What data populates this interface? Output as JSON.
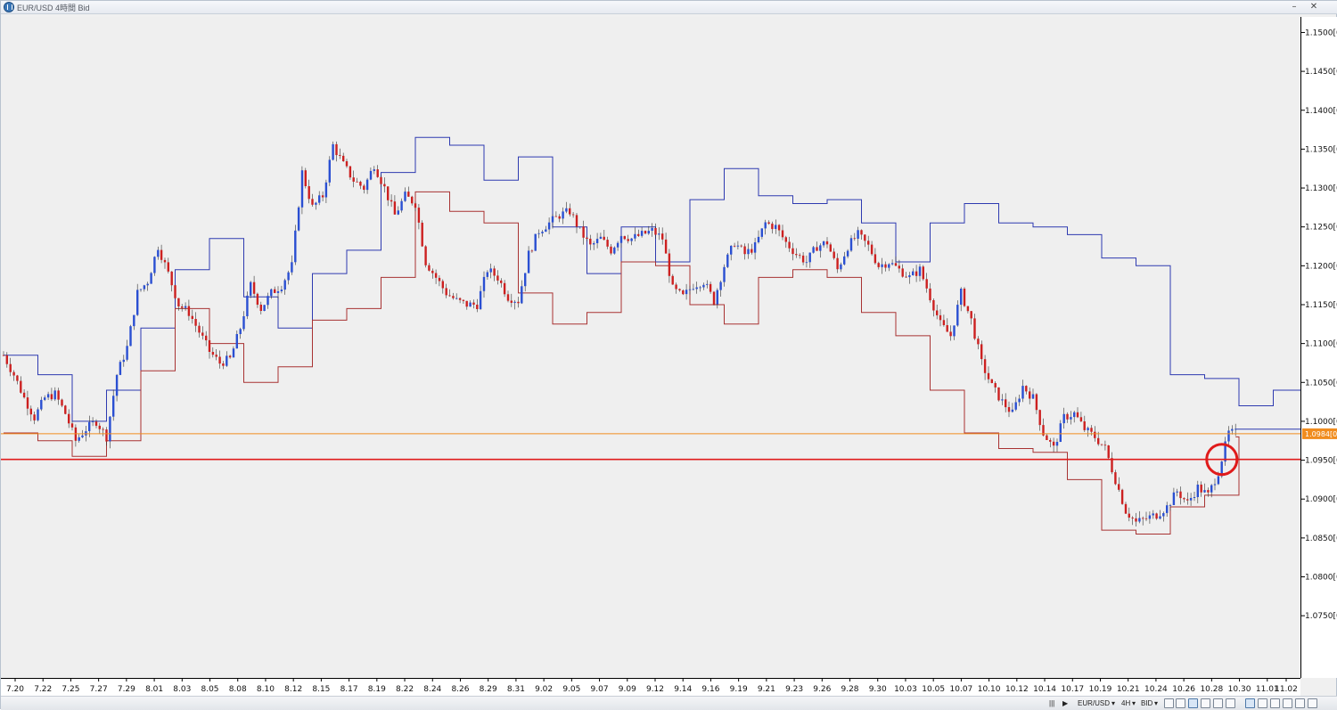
{
  "window": {
    "title": "EUR/USD 4時間 Bid",
    "minimize": "–",
    "close": "✕"
  },
  "colors": {
    "up_candle": "#2a4fd2",
    "down_candle": "#cc2020",
    "channel_high": "#2e3ab0",
    "channel_low": "#a83232",
    "support_line": "#e01b1b",
    "current_price_line": "#f08c1e",
    "marker_circle": "#e01b1b"
  },
  "chart_data": {
    "type": "candlestick",
    "symbol": "EUR/USD",
    "timeframe": "4H",
    "price_type": "Bid",
    "y_range": [
      1.067,
      1.152
    ],
    "y_ticks": [
      "1.1500[0",
      "1.1450[0",
      "1.1400[0",
      "1.1350[0",
      "1.1300[0",
      "1.1250[0",
      "1.1200[0",
      "1.1150[0",
      "1.1100[0",
      "1.1050[0",
      "1.1000[0",
      "1.0950[0",
      "1.0900[0",
      "1.0850[0",
      "1.0800[0",
      "1.0750[0"
    ],
    "x_ticks": [
      "7.20",
      "7.22",
      "7.25",
      "7.27",
      "7.29",
      "8.01",
      "8.03",
      "8.05",
      "8.08",
      "8.10",
      "8.12",
      "8.15",
      "8.17",
      "8.19",
      "8.22",
      "8.24",
      "8.26",
      "8.29",
      "8.31",
      "9.02",
      "9.05",
      "9.07",
      "9.09",
      "9.12",
      "9.14",
      "9.16",
      "9.19",
      "9.21",
      "9.23",
      "9.26",
      "9.28",
      "9.30",
      "10.03",
      "10.05",
      "10.07",
      "10.10",
      "10.12",
      "10.14",
      "10.17",
      "10.19",
      "10.21",
      "10.24",
      "10.26",
      "10.28",
      "10.30",
      "11.01",
      "11.02"
    ],
    "close_path": [
      [
        0,
        1.1085
      ],
      [
        3,
        1.106
      ],
      [
        6,
        1.103
      ],
      [
        9,
        1.1005
      ],
      [
        12,
        1.103
      ],
      [
        15,
        1.1035
      ],
      [
        18,
        1.101
      ],
      [
        21,
        1.0975
      ],
      [
        24,
        1.099
      ],
      [
        27,
        1.1
      ],
      [
        30,
        1.098
      ],
      [
        33,
        1.106
      ],
      [
        36,
        1.1095
      ],
      [
        39,
        1.1165
      ],
      [
        42,
        1.118
      ],
      [
        45,
        1.1225
      ],
      [
        48,
        1.119
      ],
      [
        51,
        1.115
      ],
      [
        54,
        1.114
      ],
      [
        57,
        1.1115
      ],
      [
        60,
        1.109
      ],
      [
        63,
        1.1075
      ],
      [
        66,
        1.108
      ],
      [
        69,
        1.112
      ],
      [
        72,
        1.1175
      ],
      [
        75,
        1.1145
      ],
      [
        78,
        1.1165
      ],
      [
        81,
        1.1175
      ],
      [
        84,
        1.12
      ],
      [
        87,
        1.132
      ],
      [
        90,
        1.1275
      ],
      [
        93,
        1.129
      ],
      [
        96,
        1.1355
      ],
      [
        99,
        1.133
      ],
      [
        102,
        1.131
      ],
      [
        105,
        1.13
      ],
      [
        108,
        1.133
      ],
      [
        111,
        1.13
      ],
      [
        114,
        1.1265
      ],
      [
        117,
        1.129
      ],
      [
        120,
        1.128
      ],
      [
        123,
        1.1205
      ],
      [
        126,
        1.1185
      ],
      [
        129,
        1.1165
      ],
      [
        132,
        1.1155
      ],
      [
        135,
        1.115
      ],
      [
        138,
        1.115
      ],
      [
        141,
        1.1195
      ],
      [
        144,
        1.1185
      ],
      [
        147,
        1.116
      ],
      [
        150,
        1.1155
      ],
      [
        153,
        1.1215
      ],
      [
        156,
        1.1245
      ],
      [
        159,
        1.1255
      ],
      [
        162,
        1.1265
      ],
      [
        165,
        1.127
      ],
      [
        168,
        1.1245
      ],
      [
        171,
        1.1225
      ],
      [
        174,
        1.1235
      ],
      [
        177,
        1.122
      ],
      [
        180,
        1.124
      ],
      [
        183,
        1.1235
      ],
      [
        186,
        1.124
      ],
      [
        189,
        1.1245
      ],
      [
        192,
        1.1235
      ],
      [
        195,
        1.117
      ],
      [
        198,
        1.116
      ],
      [
        201,
        1.1175
      ],
      [
        204,
        1.118
      ],
      [
        207,
        1.1155
      ],
      [
        210,
        1.12
      ],
      [
        213,
        1.123
      ],
      [
        216,
        1.1215
      ],
      [
        219,
        1.1225
      ],
      [
        222,
        1.1255
      ],
      [
        225,
        1.125
      ],
      [
        228,
        1.123
      ],
      [
        231,
        1.1215
      ],
      [
        234,
        1.1205
      ],
      [
        237,
        1.1225
      ],
      [
        240,
        1.123
      ],
      [
        243,
        1.1195
      ],
      [
        246,
        1.1225
      ],
      [
        249,
        1.124
      ],
      [
        252,
        1.1225
      ],
      [
        255,
        1.12
      ],
      [
        258,
        1.1205
      ],
      [
        261,
        1.1195
      ],
      [
        264,
        1.1185
      ],
      [
        267,
        1.1195
      ],
      [
        270,
        1.116
      ],
      [
        273,
        1.1125
      ],
      [
        276,
        1.111
      ],
      [
        279,
        1.1165
      ],
      [
        282,
        1.113
      ],
      [
        285,
        1.1075
      ],
      [
        288,
        1.1045
      ],
      [
        291,
        1.1025
      ],
      [
        294,
        1.101
      ],
      [
        297,
        1.1045
      ],
      [
        300,
        1.103
      ],
      [
        303,
        1.0985
      ],
      [
        306,
        1.0965
      ],
      [
        309,
        1.1005
      ],
      [
        312,
        1.101
      ],
      [
        315,
        1.099
      ],
      [
        318,
        1.098
      ],
      [
        321,
        1.0965
      ],
      [
        324,
        1.0925
      ],
      [
        327,
        1.0885
      ],
      [
        330,
        1.087
      ],
      [
        333,
        1.0875
      ],
      [
        336,
        1.088
      ],
      [
        339,
        1.089
      ],
      [
        342,
        1.091
      ],
      [
        345,
        1.0895
      ],
      [
        348,
        1.0915
      ],
      [
        351,
        1.0905
      ],
      [
        354,
        1.0935
      ],
      [
        357,
        1.0985
      ]
    ],
    "donchian_steps_high": [
      [
        0,
        1.1085
      ],
      [
        10,
        1.106
      ],
      [
        20,
        1.1
      ],
      [
        30,
        1.104
      ],
      [
        40,
        1.112
      ],
      [
        50,
        1.1195
      ],
      [
        60,
        1.1235
      ],
      [
        70,
        1.116
      ],
      [
        80,
        1.112
      ],
      [
        90,
        1.119
      ],
      [
        100,
        1.122
      ],
      [
        110,
        1.132
      ],
      [
        120,
        1.1365
      ],
      [
        130,
        1.1355
      ],
      [
        140,
        1.131
      ],
      [
        150,
        1.134
      ],
      [
        160,
        1.125
      ],
      [
        170,
        1.119
      ],
      [
        180,
        1.125
      ],
      [
        190,
        1.1205
      ],
      [
        200,
        1.1285
      ],
      [
        210,
        1.1325
      ],
      [
        220,
        1.129
      ],
      [
        230,
        1.128
      ],
      [
        240,
        1.1285
      ],
      [
        250,
        1.1255
      ],
      [
        260,
        1.1205
      ],
      [
        270,
        1.1255
      ],
      [
        280,
        1.128
      ],
      [
        290,
        1.1255
      ],
      [
        300,
        1.125
      ],
      [
        310,
        1.124
      ],
      [
        320,
        1.121
      ],
      [
        330,
        1.12
      ],
      [
        340,
        1.106
      ],
      [
        350,
        1.1055
      ],
      [
        360,
        1.102
      ],
      [
        370,
        1.104
      ],
      [
        380,
        1.0945
      ],
      [
        390,
        1.099
      ]
    ],
    "donchian_steps_low": [
      [
        0,
        1.0985
      ],
      [
        10,
        1.0975
      ],
      [
        20,
        1.0955
      ],
      [
        30,
        1.0975
      ],
      [
        40,
        1.1065
      ],
      [
        50,
        1.1145
      ],
      [
        60,
        1.11
      ],
      [
        70,
        1.105
      ],
      [
        80,
        1.107
      ],
      [
        90,
        1.113
      ],
      [
        100,
        1.1145
      ],
      [
        110,
        1.1185
      ],
      [
        120,
        1.1295
      ],
      [
        130,
        1.127
      ],
      [
        140,
        1.1255
      ],
      [
        150,
        1.1165
      ],
      [
        160,
        1.1125
      ],
      [
        170,
        1.114
      ],
      [
        180,
        1.1205
      ],
      [
        190,
        1.12
      ],
      [
        200,
        1.115
      ],
      [
        210,
        1.1125
      ],
      [
        220,
        1.1185
      ],
      [
        230,
        1.1195
      ],
      [
        240,
        1.1185
      ],
      [
        250,
        1.114
      ],
      [
        260,
        1.111
      ],
      [
        270,
        1.104
      ],
      [
        280,
        1.0985
      ],
      [
        290,
        1.0965
      ],
      [
        300,
        1.096
      ],
      [
        310,
        1.0925
      ],
      [
        320,
        1.086
      ],
      [
        330,
        1.0855
      ],
      [
        340,
        1.089
      ],
      [
        350,
        1.0905
      ],
      [
        360,
        1.098
      ]
    ],
    "horizontal_lines": [
      {
        "price": 1.0951,
        "role": "support"
      },
      {
        "price": 1.0984,
        "role": "current_price"
      }
    ],
    "current_price_label": "1.0984[0",
    "marker": {
      "bar": 355,
      "price": 1.0951,
      "shape": "circle"
    }
  },
  "statusbar": {
    "symbol": "EUR/USD",
    "timeframe": "4H",
    "price_type": "BID",
    "symbol_arrow": "▾",
    "tf_arrow": "▾",
    "pt_arrow": "▾",
    "nav_left": "◀",
    "nav_right": "▶",
    "scroll": "|||"
  }
}
